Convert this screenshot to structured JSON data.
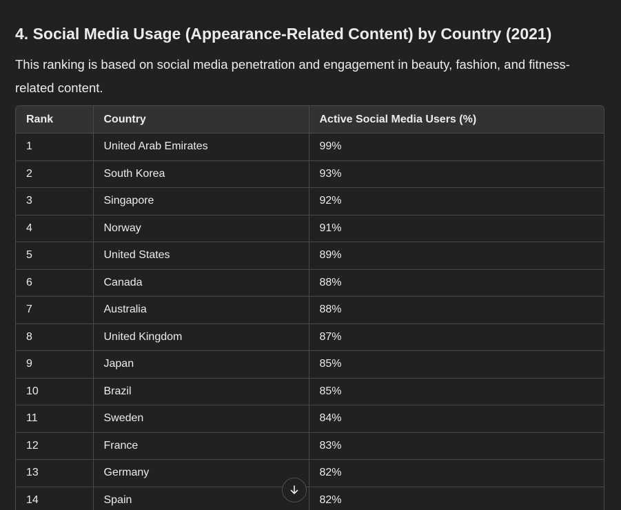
{
  "heading": "4. Social Media Usage (Appearance-Related Content) by Country (2021)",
  "description": "This ranking is based on social media penetration and engagement in beauty, fashion, and fitness-related content.",
  "table": {
    "headers": [
      "Rank",
      "Country",
      "Active Social Media Users (%)"
    ],
    "rows": [
      [
        "1",
        "United Arab Emirates",
        "99%"
      ],
      [
        "2",
        "South Korea",
        "93%"
      ],
      [
        "3",
        "Singapore",
        "92%"
      ],
      [
        "4",
        "Norway",
        "91%"
      ],
      [
        "5",
        "United States",
        "89%"
      ],
      [
        "6",
        "Canada",
        "88%"
      ],
      [
        "7",
        "Australia",
        "88%"
      ],
      [
        "8",
        "United Kingdom",
        "87%"
      ],
      [
        "9",
        "Japan",
        "85%"
      ],
      [
        "10",
        "Brazil",
        "85%"
      ],
      [
        "11",
        "Sweden",
        "84%"
      ],
      [
        "12",
        "France",
        "83%"
      ],
      [
        "13",
        "Germany",
        "82%"
      ],
      [
        "14",
        "Spain",
        "82%"
      ]
    ]
  },
  "scroll_button": {
    "icon": "arrow-down-icon"
  },
  "colors": {
    "background": "#212121",
    "text": "#ececec",
    "header_bg": "#323232",
    "border": "#4a4a4a"
  }
}
